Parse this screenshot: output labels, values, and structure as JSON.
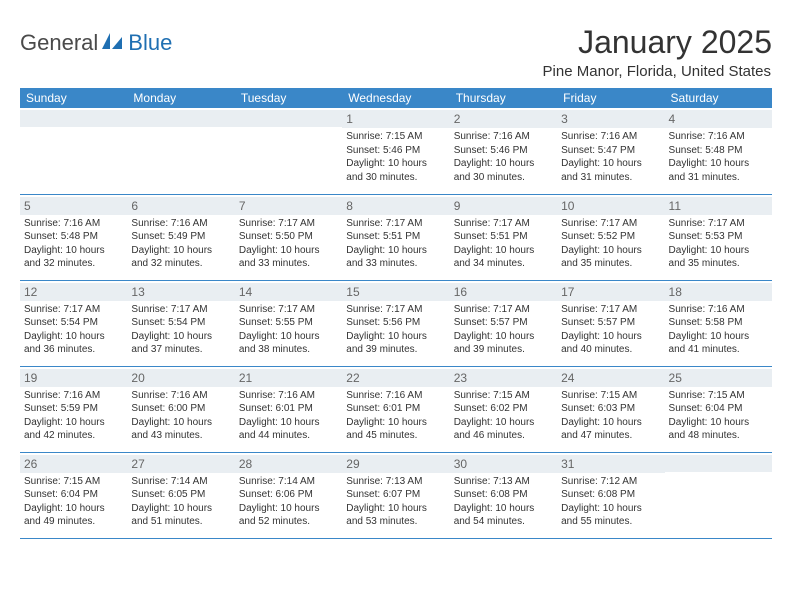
{
  "logo": {
    "text_general": "General",
    "text_blue": "Blue"
  },
  "title": "January 2025",
  "location": "Pine Manor, Florida, United States",
  "colors": {
    "header_bg": "#3a87c8",
    "header_text": "#ffffff",
    "daynum_bg": "#e9eef2",
    "daynum_text": "#666666",
    "body_text": "#333333",
    "logo_gray": "#4a4a4a",
    "logo_blue": "#1f6fb2",
    "border": "#3a87c8"
  },
  "weekdays": [
    "Sunday",
    "Monday",
    "Tuesday",
    "Wednesday",
    "Thursday",
    "Friday",
    "Saturday"
  ],
  "weeks": [
    [
      null,
      null,
      null,
      {
        "day": "1",
        "sunrise": "7:15 AM",
        "sunset": "5:46 PM",
        "daylight": "10 hours and 30 minutes."
      },
      {
        "day": "2",
        "sunrise": "7:16 AM",
        "sunset": "5:46 PM",
        "daylight": "10 hours and 30 minutes."
      },
      {
        "day": "3",
        "sunrise": "7:16 AM",
        "sunset": "5:47 PM",
        "daylight": "10 hours and 31 minutes."
      },
      {
        "day": "4",
        "sunrise": "7:16 AM",
        "sunset": "5:48 PM",
        "daylight": "10 hours and 31 minutes."
      }
    ],
    [
      {
        "day": "5",
        "sunrise": "7:16 AM",
        "sunset": "5:48 PM",
        "daylight": "10 hours and 32 minutes."
      },
      {
        "day": "6",
        "sunrise": "7:16 AM",
        "sunset": "5:49 PM",
        "daylight": "10 hours and 32 minutes."
      },
      {
        "day": "7",
        "sunrise": "7:17 AM",
        "sunset": "5:50 PM",
        "daylight": "10 hours and 33 minutes."
      },
      {
        "day": "8",
        "sunrise": "7:17 AM",
        "sunset": "5:51 PM",
        "daylight": "10 hours and 33 minutes."
      },
      {
        "day": "9",
        "sunrise": "7:17 AM",
        "sunset": "5:51 PM",
        "daylight": "10 hours and 34 minutes."
      },
      {
        "day": "10",
        "sunrise": "7:17 AM",
        "sunset": "5:52 PM",
        "daylight": "10 hours and 35 minutes."
      },
      {
        "day": "11",
        "sunrise": "7:17 AM",
        "sunset": "5:53 PM",
        "daylight": "10 hours and 35 minutes."
      }
    ],
    [
      {
        "day": "12",
        "sunrise": "7:17 AM",
        "sunset": "5:54 PM",
        "daylight": "10 hours and 36 minutes."
      },
      {
        "day": "13",
        "sunrise": "7:17 AM",
        "sunset": "5:54 PM",
        "daylight": "10 hours and 37 minutes."
      },
      {
        "day": "14",
        "sunrise": "7:17 AM",
        "sunset": "5:55 PM",
        "daylight": "10 hours and 38 minutes."
      },
      {
        "day": "15",
        "sunrise": "7:17 AM",
        "sunset": "5:56 PM",
        "daylight": "10 hours and 39 minutes."
      },
      {
        "day": "16",
        "sunrise": "7:17 AM",
        "sunset": "5:57 PM",
        "daylight": "10 hours and 39 minutes."
      },
      {
        "day": "17",
        "sunrise": "7:17 AM",
        "sunset": "5:57 PM",
        "daylight": "10 hours and 40 minutes."
      },
      {
        "day": "18",
        "sunrise": "7:16 AM",
        "sunset": "5:58 PM",
        "daylight": "10 hours and 41 minutes."
      }
    ],
    [
      {
        "day": "19",
        "sunrise": "7:16 AM",
        "sunset": "5:59 PM",
        "daylight": "10 hours and 42 minutes."
      },
      {
        "day": "20",
        "sunrise": "7:16 AM",
        "sunset": "6:00 PM",
        "daylight": "10 hours and 43 minutes."
      },
      {
        "day": "21",
        "sunrise": "7:16 AM",
        "sunset": "6:01 PM",
        "daylight": "10 hours and 44 minutes."
      },
      {
        "day": "22",
        "sunrise": "7:16 AM",
        "sunset": "6:01 PM",
        "daylight": "10 hours and 45 minutes."
      },
      {
        "day": "23",
        "sunrise": "7:15 AM",
        "sunset": "6:02 PM",
        "daylight": "10 hours and 46 minutes."
      },
      {
        "day": "24",
        "sunrise": "7:15 AM",
        "sunset": "6:03 PM",
        "daylight": "10 hours and 47 minutes."
      },
      {
        "day": "25",
        "sunrise": "7:15 AM",
        "sunset": "6:04 PM",
        "daylight": "10 hours and 48 minutes."
      }
    ],
    [
      {
        "day": "26",
        "sunrise": "7:15 AM",
        "sunset": "6:04 PM",
        "daylight": "10 hours and 49 minutes."
      },
      {
        "day": "27",
        "sunrise": "7:14 AM",
        "sunset": "6:05 PM",
        "daylight": "10 hours and 51 minutes."
      },
      {
        "day": "28",
        "sunrise": "7:14 AM",
        "sunset": "6:06 PM",
        "daylight": "10 hours and 52 minutes."
      },
      {
        "day": "29",
        "sunrise": "7:13 AM",
        "sunset": "6:07 PM",
        "daylight": "10 hours and 53 minutes."
      },
      {
        "day": "30",
        "sunrise": "7:13 AM",
        "sunset": "6:08 PM",
        "daylight": "10 hours and 54 minutes."
      },
      {
        "day": "31",
        "sunrise": "7:12 AM",
        "sunset": "6:08 PM",
        "daylight": "10 hours and 55 minutes."
      },
      null
    ]
  ],
  "labels": {
    "sunrise": "Sunrise:",
    "sunset": "Sunset:",
    "daylight": "Daylight:"
  }
}
